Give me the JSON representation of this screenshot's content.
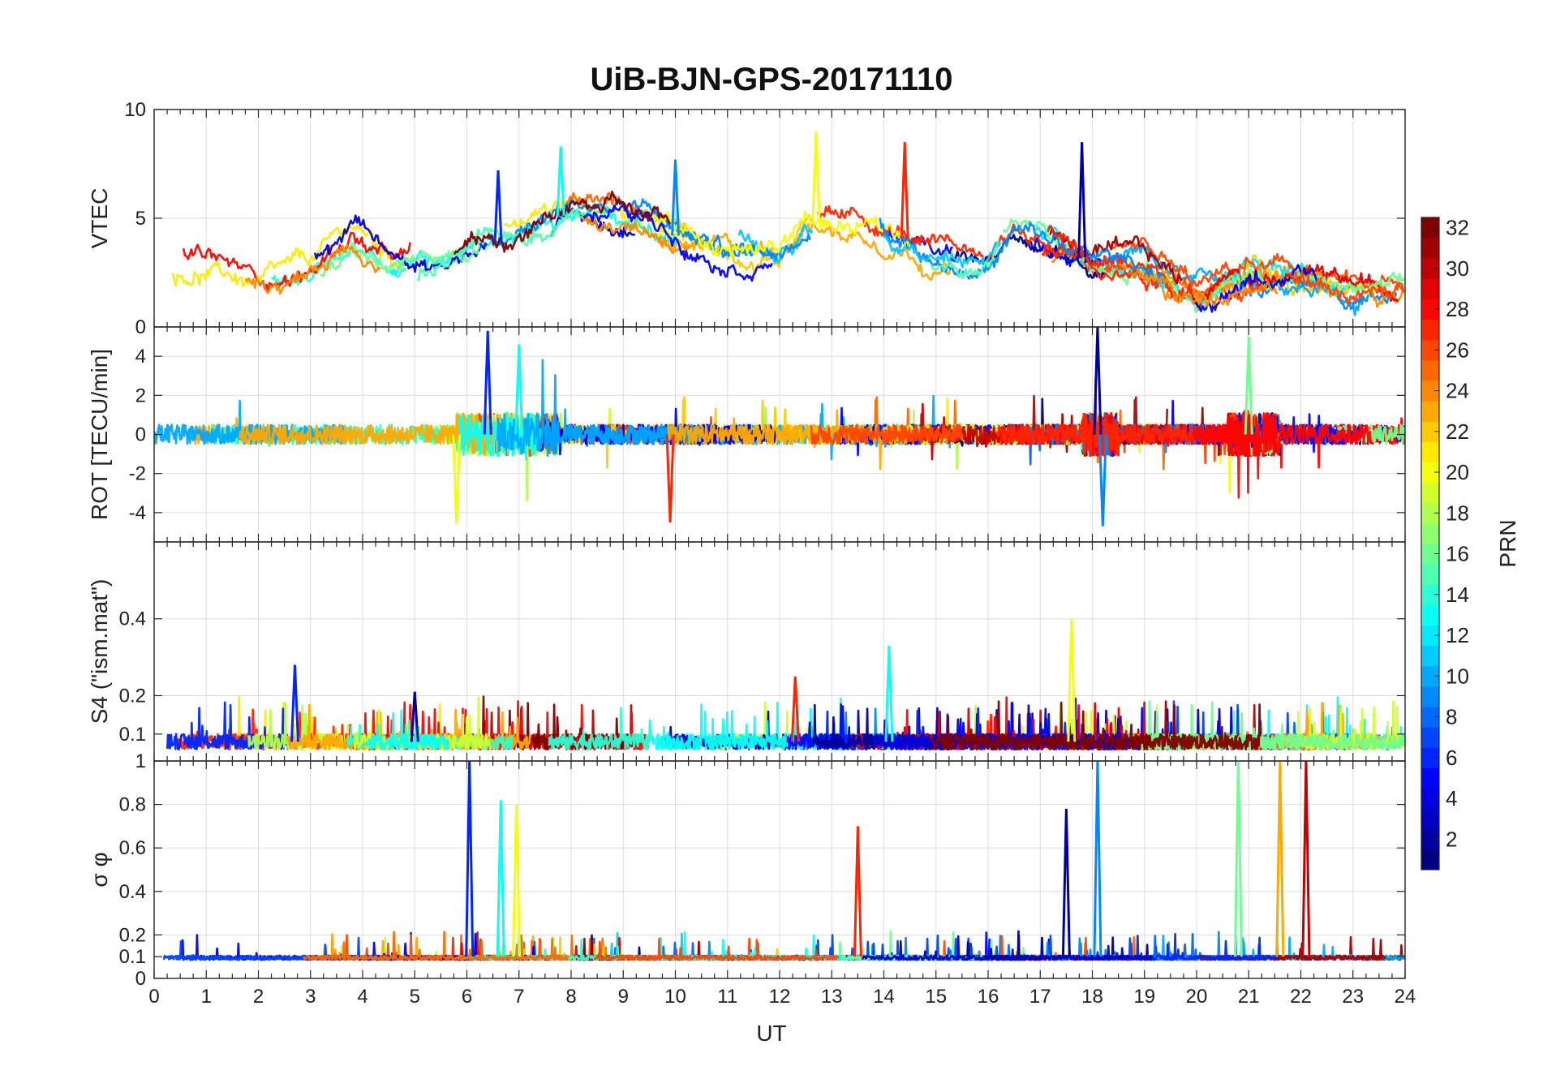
{
  "title": "UiB-BJN-GPS-20171110",
  "xlabel": "UT",
  "chart_data": {
    "type": "line",
    "x_ticks": [
      0,
      1,
      2,
      3,
      4,
      5,
      6,
      7,
      8,
      9,
      10,
      11,
      12,
      13,
      14,
      15,
      16,
      17,
      18,
      19,
      20,
      21,
      22,
      23,
      24
    ],
    "xlim": [
      0,
      24
    ],
    "grid": true,
    "colormap": "jet",
    "colorbar": {
      "label": "PRN",
      "range": [
        1,
        32
      ],
      "ticks": [
        2,
        4,
        6,
        8,
        10,
        12,
        14,
        16,
        18,
        20,
        22,
        24,
        26,
        28,
        30,
        32
      ]
    },
    "panels": [
      {
        "id": "vtec",
        "ylabel": "VTEC",
        "ylim": [
          0,
          10
        ],
        "y_ticks": [
          0,
          5,
          10
        ],
        "profile": [
          [
            0,
            2.6
          ],
          [
            1,
            2.8
          ],
          [
            2,
            2.0
          ],
          [
            3,
            2.5
          ],
          [
            3.8,
            4.3
          ],
          [
            4.5,
            3.0
          ],
          [
            5.5,
            3.0
          ],
          [
            6,
            3.6
          ],
          [
            7,
            4.0
          ],
          [
            8,
            5.4
          ],
          [
            9,
            5.3
          ],
          [
            10,
            4.2
          ],
          [
            11,
            3.5
          ],
          [
            12,
            3.5
          ],
          [
            12.5,
            5.2
          ],
          [
            13,
            4.6
          ],
          [
            14,
            4.3
          ],
          [
            14.5,
            4.0
          ],
          [
            15,
            3.2
          ],
          [
            16,
            3.0
          ],
          [
            16.5,
            4.5
          ],
          [
            17,
            4.0
          ],
          [
            18,
            3.0
          ],
          [
            19,
            2.8
          ],
          [
            20,
            1.2
          ],
          [
            21,
            2.5
          ],
          [
            22,
            2.2
          ],
          [
            23,
            1.6
          ],
          [
            24,
            1.4
          ]
        ],
        "amplitude": 1.5,
        "peaks": [
          [
            6.6,
            7.2
          ],
          [
            7.8,
            8.3
          ],
          [
            12.7,
            9.0
          ],
          [
            14.4,
            8.5
          ],
          [
            17.8,
            8.5
          ],
          [
            10.0,
            7.7
          ]
        ]
      },
      {
        "id": "rot",
        "ylabel": "ROT [TECU/min]",
        "ylim": [
          -5.5,
          5.5
        ],
        "y_ticks": [
          -4,
          -2,
          0,
          2,
          4
        ],
        "profile": [
          [
            0,
            0
          ],
          [
            24,
            0
          ]
        ],
        "amplitude": 0.5,
        "peaks": [
          [
            6.4,
            5.3
          ],
          [
            7.0,
            4.6
          ],
          [
            5.8,
            -4.6
          ],
          [
            9.9,
            -4.5
          ],
          [
            18.1,
            5.5
          ],
          [
            18.2,
            -4.7
          ],
          [
            21.0,
            5.0
          ]
        ]
      },
      {
        "id": "s4",
        "ylabel": "S4 (\"ism.mat\")",
        "ylim": [
          0.03,
          0.6
        ],
        "y_ticks": [
          0.1,
          0.2,
          0.4
        ],
        "profile": [
          [
            0,
            0.08
          ],
          [
            24,
            0.08
          ]
        ],
        "amplitude": 0.04,
        "peaks": [
          [
            2.7,
            0.28
          ],
          [
            14.1,
            0.33
          ],
          [
            17.6,
            0.4
          ],
          [
            12.3,
            0.25
          ],
          [
            5.0,
            0.21
          ]
        ]
      },
      {
        "id": "sigma_phi",
        "ylabel": "σ φ",
        "ylim": [
          0,
          1
        ],
        "y_ticks": [
          0,
          0.1,
          0.2,
          0.4,
          0.6,
          0.8,
          1
        ],
        "profile": [
          [
            0,
            0.1
          ],
          [
            24,
            0.1
          ]
        ],
        "amplitude": 0.02,
        "peaks": [
          [
            6.05,
            1.0
          ],
          [
            6.65,
            0.82
          ],
          [
            6.95,
            0.8
          ],
          [
            13.5,
            0.7
          ],
          [
            17.5,
            0.78
          ],
          [
            18.1,
            1.0
          ],
          [
            20.8,
            1.0
          ],
          [
            21.6,
            1.0
          ],
          [
            22.1,
            1.0
          ]
        ]
      }
    ]
  }
}
